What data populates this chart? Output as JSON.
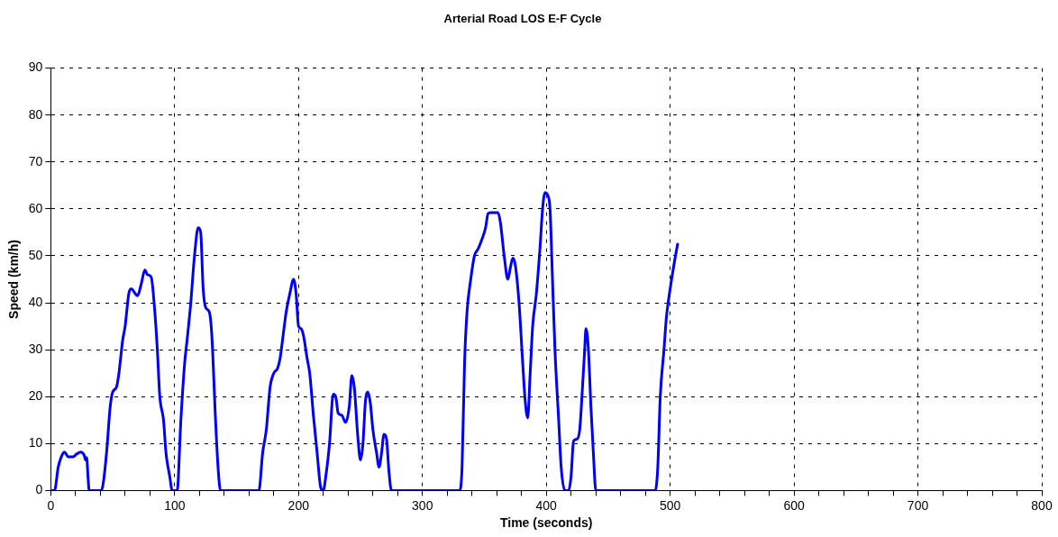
{
  "chart_data": {
    "type": "line",
    "title": "Arterial Road LOS E-F Cycle",
    "xlabel": "Time (seconds)",
    "ylabel": "Speed (km/h)",
    "xlim": [
      0,
      800
    ],
    "ylim": [
      0,
      90
    ],
    "xticks": [
      0,
      {
        "value": 20,
        "label": null
      },
      {
        "value": 40,
        "label": null
      },
      {
        "value": 60,
        "label": null
      },
      {
        "value": 80,
        "label": null
      },
      100,
      {
        "value": 120,
        "label": null
      },
      {
        "value": 140,
        "label": null
      },
      {
        "value": 160,
        "label": null
      },
      {
        "value": 180,
        "label": null
      },
      200,
      {
        "value": 220,
        "label": null
      },
      {
        "value": 240,
        "label": null
      },
      {
        "value": 260,
        "label": null
      },
      {
        "value": 280,
        "label": null
      },
      300,
      {
        "value": 320,
        "label": null
      },
      {
        "value": 340,
        "label": null
      },
      {
        "value": 360,
        "label": null
      },
      {
        "value": 380,
        "label": null
      },
      400,
      {
        "value": 420,
        "label": null
      },
      {
        "value": 440,
        "label": null
      },
      {
        "value": 460,
        "label": null
      },
      {
        "value": 480,
        "label": null
      },
      500,
      {
        "value": 520,
        "label": null
      },
      {
        "value": 540,
        "label": null
      },
      {
        "value": 560,
        "label": null
      },
      {
        "value": 580,
        "label": null
      },
      600,
      {
        "value": 620,
        "label": null
      },
      {
        "value": 640,
        "label": null
      },
      {
        "value": 660,
        "label": null
      },
      {
        "value": 680,
        "label": null
      },
      700,
      {
        "value": 720,
        "label": null
      },
      {
        "value": 740,
        "label": null
      },
      {
        "value": 760,
        "label": null
      },
      {
        "value": 780,
        "label": null
      },
      800
    ],
    "yticks": [
      0,
      10,
      20,
      30,
      40,
      50,
      60,
      70,
      80,
      90
    ],
    "grid": true,
    "line_style": "solid",
    "marker": "none",
    "legend": false,
    "series": [
      {
        "color": "#0000ff",
        "x": [
          0,
          3,
          6,
          9,
          11,
          14,
          18,
          21,
          24,
          27,
          28,
          29,
          30,
          31,
          40,
          42,
          45,
          48,
          50,
          53,
          55,
          58,
          60,
          63,
          65,
          68,
          70,
          73,
          76,
          78,
          81,
          84,
          86,
          88,
          91,
          93,
          96,
          98,
          102,
          105,
          108,
          110,
          113,
          116,
          119,
          121,
          123,
          125,
          128,
          130,
          133,
          135,
          137,
          168,
          171,
          174,
          177,
          180,
          183,
          185,
          188,
          190,
          193,
          196,
          198,
          200,
          202,
          204,
          207,
          209,
          212,
          215,
          218,
          220,
          222,
          225,
          228,
          230,
          232,
          235,
          238,
          241,
          243,
          245,
          248,
          250,
          252,
          254,
          256,
          258,
          260,
          263,
          265,
          267,
          269,
          271,
          273,
          275,
          330,
          332,
          334,
          336,
          339,
          342,
          345,
          348,
          351,
          353,
          355,
          358,
          361,
          363,
          366,
          369,
          371,
          373,
          375,
          378,
          381,
          383,
          385,
          387,
          389,
          392,
          395,
          397,
          399,
          401,
          403,
          405,
          407,
          410,
          412,
          415,
          418,
          420,
          422,
          425,
          427,
          429,
          431,
          432,
          434,
          436,
          438,
          440,
          488,
          490,
          492,
          495,
          497,
          500,
          503,
          506
        ],
        "values": [
          0,
          0,
          5,
          7.5,
          8.2,
          7.2,
          7.2,
          7.8,
          8.2,
          7.5,
          6.5,
          7,
          3,
          0,
          0,
          1,
          8,
          18,
          21,
          22,
          25,
          32,
          35,
          42,
          43,
          42,
          41.5,
          44,
          47,
          46,
          45.5,
          38,
          30,
          20,
          15,
          8,
          3,
          0,
          0,
          15,
          27,
          32,
          40,
          50,
          56,
          55,
          43,
          39,
          38,
          33,
          15,
          5,
          0,
          0,
          8,
          13,
          22,
          25,
          26,
          28,
          34,
          38,
          42,
          45,
          42,
          35,
          34.5,
          33,
          28,
          25,
          16,
          8,
          0.5,
          0,
          3,
          10,
          20.5,
          20,
          16.5,
          16,
          14.5,
          18,
          24.5,
          22,
          11,
          6.5,
          10,
          19,
          21,
          18.5,
          13,
          8,
          5,
          8,
          12,
          11,
          4,
          0,
          0,
          5,
          27,
          38,
          45,
          50,
          51.5,
          53.5,
          56,
          59,
          59.2,
          59.2,
          59.2,
          57,
          50,
          45,
          47.5,
          49.5,
          48,
          40,
          27,
          19,
          15.5,
          25,
          35,
          42,
          52,
          60,
          63.5,
          63,
          60,
          45,
          30,
          15,
          5,
          0,
          0,
          3,
          10.5,
          11,
          13,
          21,
          30,
          34.5,
          30,
          18,
          8,
          0,
          0,
          5,
          20,
          30,
          37,
          43,
          48,
          52.5
        ]
      }
    ]
  }
}
